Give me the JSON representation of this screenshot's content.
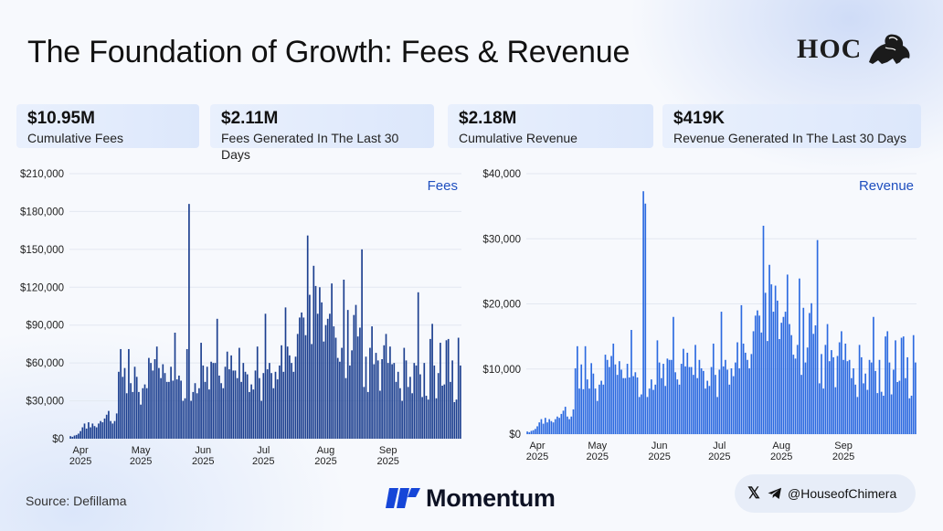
{
  "title": "The Foundation of Growth: Fees & Revenue",
  "logo": {
    "text": "HOC",
    "icon": "lion-icon"
  },
  "stats": [
    {
      "value": "$10.95M",
      "label": "Cumulative Fees"
    },
    {
      "value": "$2.11M",
      "label": "Fees Generated In The Last 30 Days"
    },
    {
      "value": "$2.18M",
      "label": "Cumulative Revenue"
    },
    {
      "value": "$419K",
      "label": "Revenue Generated In The Last 30 Days"
    }
  ],
  "colors": {
    "fees": "#1c3f8f",
    "revenue": "#2c6ae0",
    "grid": "#e3e8f1"
  },
  "chart_data": [
    {
      "type": "bar",
      "title": "Fees",
      "ylim": [
        0,
        210000
      ],
      "yticks": [
        0,
        30000,
        60000,
        90000,
        120000,
        150000,
        180000,
        210000
      ],
      "ytick_labels": [
        "$0",
        "$30,000",
        "$60,000",
        "$90,000",
        "$120,000",
        "$150,000",
        "$180,000",
        "$210,000"
      ],
      "xtick_labels": [
        {
          "month": "Apr",
          "year": "2025",
          "index": 5
        },
        {
          "month": "May",
          "year": "2025",
          "index": 35
        },
        {
          "month": "Jun",
          "year": "2025",
          "index": 66
        },
        {
          "month": "Jul",
          "year": "2025",
          "index": 96
        },
        {
          "month": "Aug",
          "year": "2025",
          "index": 127
        },
        {
          "month": "Sep",
          "year": "2025",
          "index": 158
        }
      ],
      "values": [
        2000,
        1500,
        2500,
        3000,
        4000,
        6000,
        9000,
        12000,
        8000,
        13000,
        9000,
        12000,
        10000,
        9000,
        12000,
        14000,
        13000,
        16000,
        19000,
        22000,
        14000,
        12000,
        14000,
        20000,
        53000,
        71000,
        37000,
        56000,
        36000,
        71000,
        44000,
        37000,
        57000,
        49000,
        37000,
        27000,
        40000,
        43000,
        40000,
        64000,
        60000,
        54000,
        63000,
        73000,
        56000,
        48000,
        59000,
        52000,
        45000,
        45000,
        57000,
        46000,
        84000,
        47000,
        50000,
        46000,
        30000,
        32000,
        70000,
        186000,
        30000,
        37000,
        44000,
        36000,
        40000,
        76000,
        58000,
        45000,
        57000,
        39000,
        61000,
        60000,
        60000,
        95000,
        50000,
        44000,
        40000,
        57000,
        69000,
        55000,
        66000,
        54000,
        54000,
        48000,
        72000,
        45000,
        60000,
        53000,
        51000,
        37000,
        43000,
        39000,
        54000,
        73000,
        48000,
        30000,
        52000,
        99000,
        55000,
        60000,
        52000,
        40000,
        53000,
        47000,
        58000,
        74000,
        53000,
        104000,
        73000,
        66000,
        60000,
        53000,
        65000,
        83000,
        96000,
        100000,
        96000,
        82000,
        148000,
        114000,
        75000,
        137000,
        121000,
        99000,
        120000,
        108000,
        77000,
        90000,
        95000,
        99000,
        61000,
        89000,
        80000,
        64000,
        61000,
        72000,
        126000,
        48000,
        102000,
        58000,
        70000,
        98000,
        106000,
        81000,
        88000,
        78000,
        41000,
        65000,
        37000,
        72000,
        89000,
        59000,
        68000,
        62000,
        38000,
        63000,
        74000,
        83000,
        60000,
        73000,
        59000,
        60000,
        45000,
        53000,
        40000,
        30000,
        72000,
        62000,
        41000,
        49000,
        36000,
        60000,
        58000,
        72000,
        51000,
        33000,
        60000,
        34000,
        31000,
        79000,
        57000,
        58000,
        32000,
        52000,
        76000,
        42000,
        43000,
        78000,
        79000,
        45000,
        62000,
        29000,
        31000,
        80000,
        58000
      ],
      "highlights": {
        "26": 49000,
        "58": 71000,
        "118": 161000,
        "130": 123000,
        "145": 150000,
        "173": 116000,
        "180": 91000
      }
    },
    {
      "type": "bar",
      "title": "Revenue",
      "ylim": [
        0,
        40000
      ],
      "yticks": [
        0,
        10000,
        20000,
        30000,
        40000
      ],
      "ytick_labels": [
        "$0",
        "$10,000",
        "$20,000",
        "$30,000",
        "$40,000"
      ],
      "xtick_labels": [
        {
          "month": "Apr",
          "year": "2025",
          "index": 5
        },
        {
          "month": "May",
          "year": "2025",
          "index": 35
        },
        {
          "month": "Jun",
          "year": "2025",
          "index": 66
        },
        {
          "month": "Jul",
          "year": "2025",
          "index": 96
        },
        {
          "month": "Aug",
          "year": "2025",
          "index": 127
        },
        {
          "month": "Sep",
          "year": "2025",
          "index": 158
        }
      ],
      "values": [
        400,
        300,
        500,
        600,
        800,
        1200,
        1800,
        2300,
        1600,
        2500,
        1800,
        2300,
        2000,
        1800,
        2300,
        2700,
        2500,
        3100,
        3600,
        4200,
        2700,
        2300,
        2700,
        3800,
        10100,
        13500,
        7000,
        10700,
        6900,
        13500,
        8400,
        7000,
        10900,
        9300,
        7000,
        5100,
        7600,
        8200,
        7600,
        12200,
        11400,
        10300,
        12000,
        13900,
        10700,
        9100,
        11200,
        9900,
        8600,
        8600,
        10800,
        8700,
        16000,
        8900,
        9500,
        8700,
        5700,
        6100,
        13300,
        35400,
        5700,
        7000,
        8400,
        6800,
        7600,
        14400,
        11000,
        8600,
        10800,
        7400,
        11600,
        11400,
        11400,
        18000,
        9500,
        8400,
        7600,
        10800,
        13100,
        10400,
        12500,
        10300,
        10300,
        9100,
        13700,
        8600,
        11400,
        10100,
        9700,
        7000,
        8200,
        7400,
        10300,
        13900,
        9100,
        5700,
        9900,
        18800,
        10400,
        11400,
        9900,
        7600,
        10100,
        8900,
        11000,
        14100,
        10100,
        19800,
        13900,
        12500,
        11400,
        10100,
        12300,
        15800,
        18200,
        19000,
        18200,
        15600,
        28100,
        21700,
        14300,
        26000,
        23000,
        18800,
        22800,
        20500,
        14600,
        17100,
        18000,
        18800,
        11600,
        16900,
        15200,
        12200,
        11600,
        13700,
        23900,
        9100,
        19400,
        11000,
        13300,
        18600,
        20100,
        15400,
        16700,
        14800,
        7800,
        12300,
        7000,
        13700,
        16900,
        11200,
        12900,
        11800,
        7200,
        12000,
        14100,
        15800,
        11400,
        13900,
        11200,
        11400,
        8600,
        10100,
        7600,
        5700,
        13700,
        11800,
        7800,
        9300,
        6800,
        11400,
        11000,
        13700,
        9700,
        6300,
        11400,
        6500,
        5900,
        15000,
        10800,
        11000,
        6100,
        9900,
        14400,
        8000,
        8200,
        14800,
        15000,
        8600,
        11800,
        5500,
        5900,
        15200,
        11000
      ],
      "highlights": {
        "58": 37300,
        "118": 32000,
        "130": 24500,
        "145": 29800,
        "173": 18000,
        "180": 15800
      }
    }
  ],
  "footer": {
    "source": "Source: Defillama",
    "brand": "Momentum",
    "brand_icon": "momentum-logo-icon",
    "social_handle": "@HouseofChimera",
    "social_icons": [
      "x-icon",
      "telegram-icon"
    ]
  }
}
